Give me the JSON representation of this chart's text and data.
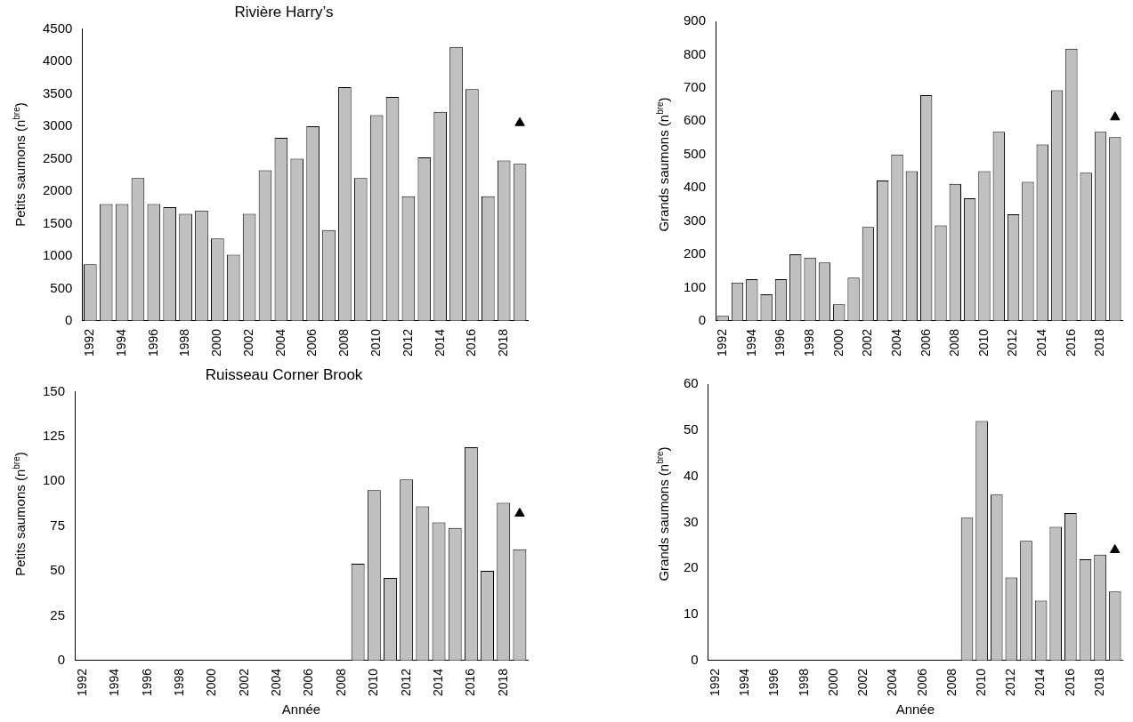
{
  "chart_data": [
    {
      "type": "bar",
      "title": "Rivière Harry’s",
      "ylabel": "Petits saumons (n$^{bre}$)",
      "categories": [
        "1992",
        null,
        "1994",
        null,
        "1996",
        null,
        "1998",
        null,
        "2000",
        null,
        "2002",
        null,
        "2004",
        null,
        "2006",
        null,
        "2008",
        null,
        "2010",
        null,
        "2012",
        null,
        "2014",
        null,
        "2016",
        null,
        "2018",
        null
      ],
      "series": [
        {
          "color": "#c0c0c0",
          "values": [
            870,
            1800,
            1800,
            2200,
            1800,
            1750,
            1650,
            1700,
            1270,
            1020,
            1650,
            2320,
            2820,
            2500,
            3000,
            1400,
            3600,
            2200,
            3170,
            3450,
            1920,
            2520,
            3220,
            4220,
            3570,
            1920,
            2470,
            2420
          ]
        },
        {
          "type": "scatter",
          "color": "#000000",
          "marker": "triangle",
          "values": [
            null,
            null,
            null,
            null,
            null,
            null,
            null,
            null,
            null,
            null,
            null,
            null,
            null,
            null,
            null,
            null,
            null,
            null,
            null,
            null,
            null,
            null,
            null,
            null,
            null,
            null,
            null,
            3050
          ]
        }
      ],
      "ylim": [
        0,
        4500
      ],
      "yticks": [
        0,
        500,
        1000,
        1500,
        2000,
        2500,
        3000,
        3500,
        4000,
        4500
      ],
      "grid": false,
      "legend": false
    },
    {
      "type": "bar",
      "ylabel": "Grands saumons (n$^{bre}$)",
      "categories": [
        "1992",
        null,
        "1994",
        null,
        "1996",
        null,
        "1998",
        null,
        "2000",
        null,
        "2002",
        null,
        "2004",
        null,
        "2006",
        null,
        "2008",
        null,
        "2010",
        null,
        "2012",
        null,
        "2014",
        null,
        "2016",
        null,
        "2018",
        null
      ],
      "series": [
        {
          "color": "#c0c0c0",
          "values": [
            15,
            115,
            125,
            80,
            125,
            200,
            190,
            175,
            50,
            130,
            282,
            422,
            500,
            450,
            678,
            287,
            412,
            368,
            450,
            568,
            320,
            418,
            530,
            693,
            818,
            445,
            568,
            552
          ]
        },
        {
          "type": "scatter",
          "color": "#000000",
          "marker": "triangle",
          "values": [
            null,
            null,
            null,
            null,
            null,
            null,
            null,
            null,
            null,
            null,
            null,
            null,
            null,
            null,
            null,
            null,
            null,
            null,
            null,
            null,
            null,
            null,
            null,
            null,
            null,
            null,
            null,
            612
          ]
        }
      ],
      "ylim": [
        0,
        900
      ],
      "yticks": [
        0,
        100,
        200,
        300,
        400,
        500,
        600,
        700,
        800,
        900
      ],
      "grid": false,
      "legend": false
    },
    {
      "type": "bar",
      "title": "Ruisseau Corner Brook",
      "xlabel": "Année",
      "ylabel": "Petits saumons (n$^{bre}$)",
      "categories": [
        "1992",
        null,
        "1994",
        null,
        "1996",
        null,
        "1998",
        null,
        "2000",
        null,
        "2002",
        null,
        "2004",
        null,
        "2006",
        null,
        "2008",
        null,
        "2010",
        null,
        "2012",
        null,
        "2014",
        null,
        "2016",
        null,
        "2018",
        null
      ],
      "series": [
        {
          "color": "#c0c0c0",
          "values": [
            null,
            null,
            null,
            null,
            null,
            null,
            null,
            null,
            null,
            null,
            null,
            null,
            null,
            null,
            null,
            null,
            null,
            54,
            95,
            46,
            101,
            86,
            77,
            74,
            119,
            50,
            88,
            62
          ]
        },
        {
          "type": "scatter",
          "color": "#000000",
          "marker": "triangle",
          "values": [
            null,
            null,
            null,
            null,
            null,
            null,
            null,
            null,
            null,
            null,
            null,
            null,
            null,
            null,
            null,
            null,
            null,
            null,
            null,
            null,
            null,
            null,
            null,
            null,
            null,
            null,
            null,
            82
          ]
        }
      ],
      "ylim": [
        0,
        150
      ],
      "yticks": [
        0,
        25,
        50,
        75,
        100,
        125,
        150
      ],
      "grid": false,
      "legend": false
    },
    {
      "type": "bar",
      "xlabel": "Année",
      "ylabel": "Grands saumons (n$^{bre}$)",
      "categories": [
        "1992",
        null,
        "1994",
        null,
        "1996",
        null,
        "1998",
        null,
        "2000",
        null,
        "2002",
        null,
        "2004",
        null,
        "2006",
        null,
        "2008",
        null,
        "2010",
        null,
        "2012",
        null,
        "2014",
        null,
        "2016",
        null,
        "2018",
        null
      ],
      "series": [
        {
          "color": "#c0c0c0",
          "values": [
            null,
            null,
            null,
            null,
            null,
            null,
            null,
            null,
            null,
            null,
            null,
            null,
            null,
            null,
            null,
            null,
            null,
            31,
            52,
            36,
            18,
            26,
            13,
            29,
            32,
            22,
            23,
            15
          ]
        },
        {
          "type": "scatter",
          "color": "#000000",
          "marker": "triangle",
          "values": [
            null,
            null,
            null,
            null,
            null,
            null,
            null,
            null,
            null,
            null,
            null,
            null,
            null,
            null,
            null,
            null,
            null,
            null,
            null,
            null,
            null,
            null,
            null,
            null,
            null,
            null,
            null,
            24
          ]
        }
      ],
      "ylim": [
        0,
        60
      ],
      "yticks": [
        0,
        10,
        20,
        30,
        40,
        50,
        60
      ],
      "grid": false,
      "legend": false
    }
  ]
}
